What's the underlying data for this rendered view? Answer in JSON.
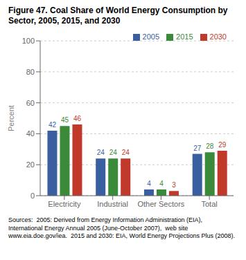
{
  "chart_data": {
    "type": "bar",
    "title": "Figure 47.  Coal Share of World Energy Consumption by Sector, 2005, 2015, and 2030",
    "ylabel": "Percent",
    "categories": [
      "Electricity",
      "Industrial",
      "Other Sectors",
      "Total"
    ],
    "series": [
      {
        "name": "2005",
        "color": "#3a5fa0",
        "values": [
          42,
          24,
          4,
          27
        ]
      },
      {
        "name": "2015",
        "color": "#3a8a3a",
        "values": [
          45,
          24,
          4,
          28
        ]
      },
      {
        "name": "2030",
        "color": "#c0392b",
        "values": [
          46,
          24,
          3,
          29
        ]
      }
    ],
    "ylim": [
      0,
      100
    ],
    "yticks": [
      0,
      20,
      40,
      60,
      80,
      100
    ],
    "grid": true,
    "legend": "upper right",
    "data_labels": true,
    "annotations": [
      "Sources:  2005: Derived from Energy Information Administration (EIA), International Energy Annual 2005 (June-October 2007),  web site  www.eia.doe.gov/iea.  2015 and 2030: EIA, World Energy Projections Plus (2008)."
    ]
  }
}
